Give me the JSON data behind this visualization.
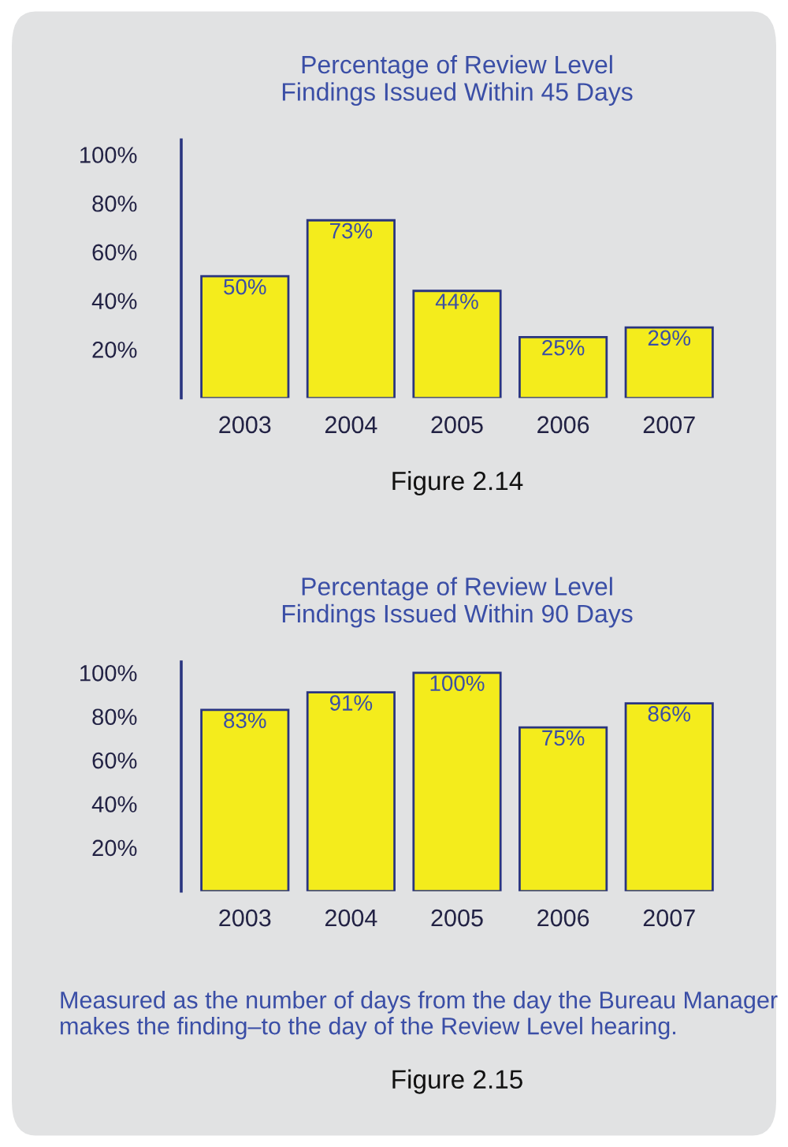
{
  "chart_data": [
    {
      "type": "bar",
      "title": "Percentage of Review Level\nFindings Issued Within 45 Days",
      "categories": [
        "2003",
        "2004",
        "2005",
        "2006",
        "2007"
      ],
      "values": [
        50,
        73,
        44,
        25,
        29
      ],
      "value_labels": [
        "50%",
        "73%",
        "44%",
        "25%",
        "29%"
      ],
      "color": "#f4ec1c",
      "ylim": [
        0,
        106
      ],
      "yticks": [
        {
          "value": 20,
          "label": "20%"
        },
        {
          "value": 40,
          "label": "40%"
        },
        {
          "value": 60,
          "label": "60%"
        },
        {
          "value": 80,
          "label": "80%"
        },
        {
          "value": 100,
          "label": "100%"
        }
      ],
      "grid": false,
      "legend": false,
      "annotations": [
        "Figure 2.14"
      ]
    },
    {
      "type": "bar",
      "title": "Percentage of Review Level\nFindings Issued Within 90 Days",
      "categories": [
        "2003",
        "2004",
        "2005",
        "2006",
        "2007"
      ],
      "values": [
        83,
        91,
        100,
        75,
        86
      ],
      "value_labels": [
        "83%",
        "91%",
        "100%",
        "75%",
        "86%"
      ],
      "color": "#f4ec1c",
      "ylim": [
        0,
        105
      ],
      "yticks": [
        {
          "value": 20,
          "label": "20%"
        },
        {
          "value": 40,
          "label": "40%"
        },
        {
          "value": 60,
          "label": "60%"
        },
        {
          "value": 80,
          "label": "80%"
        },
        {
          "value": 100,
          "label": "100%"
        }
      ],
      "grid": false,
      "legend": false,
      "annotations": [
        "Measured as the number of days from the day the Bureau Manager makes the finding–to the day of the Review Level hearing.",
        "Figure 2.15"
      ]
    }
  ]
}
